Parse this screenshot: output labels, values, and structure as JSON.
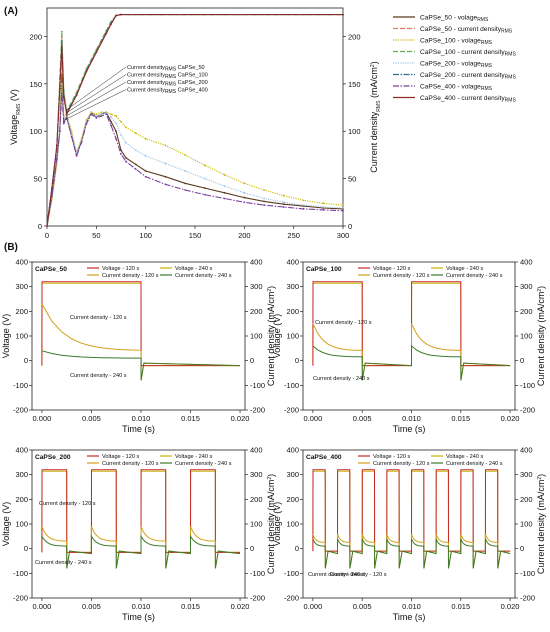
{
  "panels": {
    "A": "(A)",
    "B": "(B)"
  },
  "chart_data": [
    {
      "type": "line",
      "panel": "(A)",
      "xlabel": "",
      "ylabel_left": "Voltage",
      "ylabel_left_sub": "RMS",
      "ylabel_left_unit": " (V)",
      "ylabel_right": "Current density",
      "ylabel_right_sub": "RMS",
      "ylabel_right_unit": " (mA/cm",
      "ylabel_right_sup": "2",
      "ylabel_right_close": ")",
      "xlim": [
        0,
        300
      ],
      "ylim_left": [
        0,
        230
      ],
      "ylim_right": [
        0,
        230
      ],
      "xticks": [
        0,
        50,
        100,
        150,
        200,
        250,
        300
      ],
      "yticks_left": [
        0,
        50,
        100,
        150,
        200
      ],
      "yticks_right": [
        0,
        50,
        100,
        150,
        200
      ],
      "annotations": [
        {
          "main": "Current density",
          "sub": "RMS",
          "tail": " CaPSe_50"
        },
        {
          "main": "Current density",
          "sub": "RMS",
          "tail": " CaPSe_100"
        },
        {
          "main": "Current density",
          "sub": "RMS",
          "tail": " CaPSe_200"
        },
        {
          "main": "Current density",
          "sub": "RMS",
          "tail": " CaPSe_400"
        }
      ],
      "legend": [
        {
          "main": "CaPSe_50 - volage",
          "sub": "RMS",
          "color": "#5c3b1e",
          "dash": ""
        },
        {
          "main": "CaPSe_50 - current density",
          "sub": "RMS",
          "color": "#e07b6a",
          "dash": "5,2"
        },
        {
          "main": "CaPSe_100 - volage",
          "sub": "RMS",
          "color": "#c7b700",
          "dash": "1.2,1.2"
        },
        {
          "main": "CaPSe_100 - current density",
          "sub": "RMS",
          "color": "#6aa84f",
          "dash": "5,2"
        },
        {
          "main": "CaPSe_200 - volage",
          "sub": "RMS",
          "color": "#9dc3e6",
          "dash": "1.2,1.2"
        },
        {
          "main": "CaPSe_200 - current density",
          "sub": "RMS",
          "color": "#2f6f8f",
          "dash": "6,1.5,1.5,1.5"
        },
        {
          "main": "CaPSe_400 - volage",
          "sub": "RMS",
          "color": "#7b3fa0",
          "dash": "6,1.5,1.5,1.5"
        },
        {
          "main": "CaPSe_400 - current density",
          "sub": "RMS",
          "color": "#8b2c2c",
          "dash": ""
        }
      ],
      "series": [
        {
          "name": "CaPSe_50 - volage RMS",
          "axis": "left",
          "color": "#5c3b1e",
          "x": [
            0,
            5,
            10,
            13,
            15,
            17,
            20,
            25,
            30,
            35,
            40,
            45,
            50,
            55,
            60,
            65,
            70,
            75,
            80,
            90,
            100,
            120,
            140,
            160,
            180,
            200,
            220,
            240,
            260,
            280,
            300
          ],
          "y": [
            0,
            30,
            70,
            100,
            160,
            110,
            115,
            95,
            75,
            90,
            110,
            120,
            115,
            118,
            120,
            110,
            100,
            80,
            72,
            65,
            58,
            52,
            45,
            40,
            35,
            30,
            26,
            23,
            21,
            19,
            18
          ]
        },
        {
          "name": "CaPSe_100 - volage RMS",
          "axis": "left",
          "color": "#c7b700",
          "x": [
            0,
            5,
            10,
            13,
            15,
            17,
            20,
            25,
            30,
            35,
            40,
            45,
            50,
            55,
            60,
            65,
            70,
            75,
            80,
            90,
            100,
            120,
            140,
            160,
            180,
            200,
            220,
            240,
            260,
            280,
            300
          ],
          "y": [
            0,
            28,
            65,
            105,
            180,
            115,
            118,
            100,
            78,
            92,
            112,
            120,
            118,
            120,
            120,
            118,
            116,
            110,
            104,
            98,
            92,
            85,
            75,
            64,
            54,
            45,
            38,
            32,
            27,
            24,
            22
          ]
        },
        {
          "name": "CaPSe_200 - volage RMS",
          "axis": "left",
          "color": "#9dc3e6",
          "x": [
            0,
            5,
            10,
            13,
            15,
            17,
            20,
            25,
            30,
            35,
            40,
            45,
            50,
            55,
            60,
            65,
            70,
            75,
            80,
            90,
            100,
            120,
            140,
            160,
            180,
            200,
            220,
            240,
            260,
            280,
            300
          ],
          "y": [
            0,
            30,
            68,
            98,
            150,
            112,
            116,
            96,
            77,
            90,
            110,
            119,
            116,
            118,
            119,
            115,
            108,
            96,
            88,
            80,
            74,
            66,
            58,
            50,
            42,
            35,
            29,
            25,
            22,
            20,
            19
          ]
        },
        {
          "name": "CaPSe_400 - volage RMS",
          "axis": "left",
          "color": "#7b3fa0",
          "x": [
            0,
            5,
            10,
            13,
            15,
            17,
            20,
            25,
            30,
            35,
            40,
            45,
            50,
            55,
            60,
            65,
            70,
            75,
            80,
            90,
            100,
            120,
            140,
            160,
            180,
            200,
            220,
            240,
            260,
            280,
            300
          ],
          "y": [
            0,
            32,
            72,
            100,
            140,
            108,
            114,
            94,
            74,
            88,
            108,
            118,
            114,
            116,
            118,
            106,
            92,
            76,
            68,
            60,
            52,
            44,
            38,
            33,
            29,
            25,
            22,
            20,
            18,
            17,
            16
          ]
        },
        {
          "name": "CaPSe_50 - current density RMS",
          "axis": "right",
          "color": "#e07b6a",
          "x": [
            0,
            5,
            10,
            13,
            15,
            17,
            20,
            30,
            40,
            50,
            60,
            65,
            70,
            75,
            300
          ],
          "y": [
            0,
            40,
            85,
            150,
            200,
            140,
            120,
            140,
            165,
            185,
            205,
            215,
            222,
            223,
            223
          ]
        },
        {
          "name": "CaPSe_100 - current density RMS",
          "axis": "right",
          "color": "#6aa84f",
          "x": [
            0,
            5,
            10,
            13,
            15,
            17,
            20,
            30,
            40,
            50,
            60,
            65,
            70,
            75,
            300
          ],
          "y": [
            0,
            40,
            85,
            155,
            205,
            142,
            121,
            141,
            166,
            186,
            206,
            216,
            222,
            223,
            223
          ]
        },
        {
          "name": "CaPSe_200 - current density RMS",
          "axis": "right",
          "color": "#2f6f8f",
          "x": [
            0,
            5,
            10,
            13,
            15,
            17,
            20,
            30,
            40,
            50,
            60,
            65,
            70,
            75,
            300
          ],
          "y": [
            0,
            40,
            85,
            148,
            195,
            138,
            119,
            139,
            164,
            184,
            204,
            214,
            222,
            223,
            223
          ]
        },
        {
          "name": "CaPSe_400 - current density RMS",
          "axis": "right",
          "color": "#8b2c2c",
          "x": [
            0,
            5,
            10,
            13,
            15,
            17,
            20,
            30,
            40,
            50,
            60,
            65,
            70,
            75,
            300
          ],
          "y": [
            0,
            40,
            85,
            145,
            190,
            136,
            118,
            138,
            163,
            183,
            203,
            213,
            222,
            223,
            223
          ]
        }
      ]
    },
    {
      "type": "line",
      "panel": "(B)",
      "title": "CaPSe_50",
      "periods": 1,
      "xlabel": "Time (s)",
      "ylabel_left": "Voltage (V)",
      "ylabel_right_main": "Current density (mA/cm",
      "ylabel_right_sup": "2",
      "ylabel_right_close": ")",
      "xlim": [
        -0.001,
        0.0205
      ],
      "ylim": [
        -200,
        400
      ],
      "xticks": [
        0.0,
        0.005,
        0.01,
        0.015,
        0.02
      ],
      "xtick_labels": [
        "0.000",
        "0.005",
        "0.010",
        "0.015",
        "0.020"
      ],
      "yticks": [
        -200,
        -100,
        0,
        100,
        200,
        300,
        400
      ],
      "legend": [
        {
          "name": "Voltage - 120 s",
          "color": "#c62828"
        },
        {
          "name": "Voltage - 240 s",
          "color": "#c7b700"
        },
        {
          "name": "Current density - 120 s",
          "color": "#d4a017"
        },
        {
          "name": "Current density - 240 s",
          "color": "#3d7a2a"
        }
      ],
      "voltage_on": 320,
      "voltage_off": -20,
      "current_120_peak": 230,
      "current_120_level": 40,
      "current_240_peak": 40,
      "current_240_level": 10,
      "annotations": [
        "Current density - 120 s",
        "Current density - 240 s"
      ]
    },
    {
      "type": "line",
      "panel": "(B)",
      "title": "CaPSe_100",
      "periods": 2,
      "xlabel": "Time (s)",
      "ylabel_left": "Voltage (V)",
      "ylabel_right_main": "Current density (mA/cm",
      "ylabel_right_sup": "2",
      "ylabel_right_close": ")",
      "xlim": [
        -0.001,
        0.0205
      ],
      "ylim": [
        -200,
        400
      ],
      "xticks": [
        0.0,
        0.005,
        0.01,
        0.015,
        0.02
      ],
      "xtick_labels": [
        "0.000",
        "0.005",
        "0.010",
        "0.015",
        "0.020"
      ],
      "yticks": [
        -200,
        -100,
        0,
        100,
        200,
        300,
        400
      ],
      "legend": [
        {
          "name": "Voltage - 120 s",
          "color": "#c62828"
        },
        {
          "name": "Voltage - 240 s",
          "color": "#c7b700"
        },
        {
          "name": "Current density - 120 s",
          "color": "#d4a017"
        },
        {
          "name": "Current density - 240 s",
          "color": "#3d7a2a"
        }
      ],
      "voltage_on": 320,
      "voltage_off": -20,
      "current_120_peak": 150,
      "current_120_level": 40,
      "current_240_peak": 60,
      "current_240_level": 15,
      "annotations": [
        "Current density - 120 s",
        "Current density - 240 s"
      ]
    },
    {
      "type": "line",
      "panel": "(B)",
      "title": "CaPSe_200",
      "periods": 4,
      "xlabel": "Time (s)",
      "ylabel_left": "Voltage (V)",
      "ylabel_right_main": "Current density (mA/cm",
      "ylabel_right_sup": "2",
      "ylabel_right_close": ")",
      "xlim": [
        -0.001,
        0.0205
      ],
      "ylim": [
        -200,
        400
      ],
      "xticks": [
        0.0,
        0.005,
        0.01,
        0.015,
        0.02
      ],
      "xtick_labels": [
        "0.000",
        "0.005",
        "0.010",
        "0.015",
        "0.020"
      ],
      "yticks": [
        -200,
        -100,
        0,
        100,
        200,
        300,
        400
      ],
      "legend": [
        {
          "name": "Voltage - 120 s",
          "color": "#c62828"
        },
        {
          "name": "Voltage - 240 s",
          "color": "#c7b700"
        },
        {
          "name": "Current density - 120 s",
          "color": "#d4a017"
        },
        {
          "name": "Current density - 240 s",
          "color": "#3d7a2a"
        }
      ],
      "voltage_on": 320,
      "voltage_off": -15,
      "current_120_peak": 90,
      "current_120_level": 30,
      "current_240_peak": 50,
      "current_240_level": 10,
      "annotations": [
        "Current density - 120 s",
        "Current density - 240 s"
      ]
    },
    {
      "type": "line",
      "panel": "(B)",
      "title": "CaPSe_400",
      "periods": 8,
      "xlabel": "Time (s)",
      "ylabel_left": "Voltage (V)",
      "ylabel_right_main": "Current density (mA/cm",
      "ylabel_right_sup": "2",
      "ylabel_right_close": ")",
      "xlim": [
        -0.001,
        0.0205
      ],
      "ylim": [
        -200,
        400
      ],
      "xticks": [
        0.0,
        0.005,
        0.01,
        0.015,
        0.02
      ],
      "xtick_labels": [
        "0.000",
        "0.005",
        "0.010",
        "0.015",
        "0.020"
      ],
      "yticks": [
        -200,
        -100,
        0,
        100,
        200,
        300,
        400
      ],
      "legend": [
        {
          "name": "Voltage - 120 s",
          "color": "#c62828"
        },
        {
          "name": "Voltage - 240 s",
          "color": "#c7b700"
        },
        {
          "name": "Current density - 120 s",
          "color": "#d4a017"
        },
        {
          "name": "Current density - 240 s",
          "color": "#3d7a2a"
        }
      ],
      "voltage_on": 320,
      "voltage_off": -10,
      "current_120_peak": 60,
      "current_120_level": 25,
      "current_240_peak": 40,
      "current_240_level": 10,
      "annotations": [
        "Current density - 240 s",
        "Current density - 120 s"
      ]
    }
  ]
}
